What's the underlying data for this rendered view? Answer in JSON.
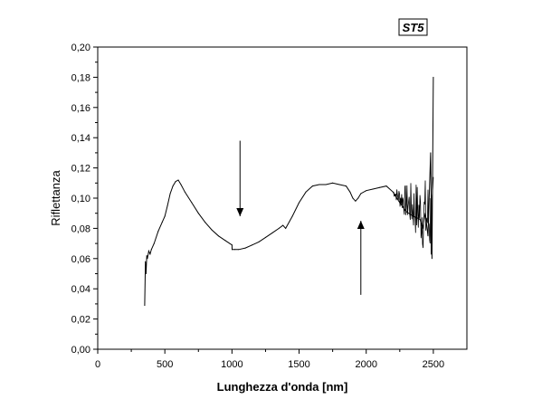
{
  "chart_data": {
    "type": "line",
    "title": "",
    "tag": "ST5",
    "xlabel": "Lunghezza d'onda [nm]",
    "ylabel": "Riflettanza",
    "xlim": [
      0,
      2750
    ],
    "ylim": [
      0,
      0.2
    ],
    "xticks": [
      0,
      500,
      1000,
      1500,
      2000,
      2500
    ],
    "xtick_labels": [
      "0",
      "500",
      "1000",
      "1500",
      "2000",
      "2500"
    ],
    "yticks": [
      0,
      0.02,
      0.04,
      0.06,
      0.08,
      0.1,
      0.12,
      0.14,
      0.16,
      0.18,
      0.2
    ],
    "ytick_labels": [
      "0,00",
      "0,02",
      "0,04",
      "0,06",
      "0,08",
      "0,10",
      "0,12",
      "0,14",
      "0,16",
      "0,18",
      "0,20"
    ],
    "grid": false,
    "legend": false,
    "series": [
      {
        "x": [
          350,
          355,
          360,
          365,
          370,
          380,
          390,
          400,
          420,
          450,
          480,
          500,
          520,
          540,
          560,
          580,
          600,
          620,
          650,
          700,
          750,
          800,
          850,
          900,
          950,
          1000,
          1001,
          1020,
          1050,
          1100,
          1150,
          1200,
          1250,
          1300,
          1350,
          1380,
          1400,
          1450,
          1500,
          1550,
          1600,
          1650,
          1700,
          1750,
          1800,
          1850,
          1880,
          1900,
          1920,
          1940,
          1960,
          2000,
          2050,
          2100,
          2150,
          2200,
          2250,
          2300,
          2350,
          2400,
          2420,
          2440,
          2460,
          2480,
          2490,
          2500
        ],
        "y": [
          0.029,
          0.058,
          0.05,
          0.062,
          0.06,
          0.065,
          0.063,
          0.066,
          0.07,
          0.078,
          0.084,
          0.088,
          0.095,
          0.103,
          0.108,
          0.111,
          0.112,
          0.109,
          0.104,
          0.097,
          0.09,
          0.084,
          0.079,
          0.075,
          0.072,
          0.069,
          0.066,
          0.066,
          0.066,
          0.067,
          0.069,
          0.071,
          0.074,
          0.077,
          0.08,
          0.082,
          0.08,
          0.088,
          0.097,
          0.104,
          0.108,
          0.109,
          0.109,
          0.11,
          0.109,
          0.108,
          0.104,
          0.1,
          0.098,
          0.1,
          0.103,
          0.105,
          0.106,
          0.107,
          0.108,
          0.104,
          0.097,
          0.091,
          0.088,
          0.086,
          0.08,
          0.09,
          0.075,
          0.13,
          0.06,
          0.18
        ]
      }
    ],
    "annotations": [
      {
        "type": "arrow",
        "direction": "down",
        "x_data": 1060,
        "y_from": 0.138,
        "y_to": 0.088
      },
      {
        "type": "arrow",
        "direction": "up",
        "x_data": 1960,
        "y_from": 0.036,
        "y_to": 0.085
      }
    ]
  }
}
